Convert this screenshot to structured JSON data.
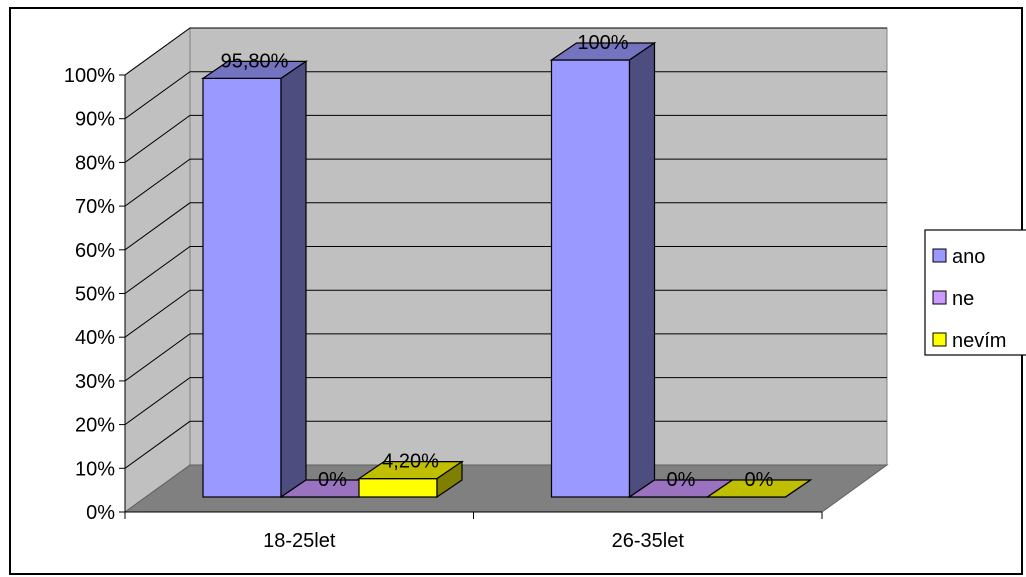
{
  "chart_data": {
    "type": "bar",
    "title": "",
    "xlabel": "",
    "ylabel": "",
    "ylim": [
      0,
      100
    ],
    "yticks": [
      "0%",
      "10%",
      "20%",
      "30%",
      "40%",
      "50%",
      "60%",
      "70%",
      "80%",
      "90%",
      "100%"
    ],
    "categories": [
      "18-25let",
      "26-35let"
    ],
    "series": [
      {
        "name": "ano",
        "values": [
          95.8,
          100
        ],
        "labels": [
          "95,80%",
          "100%"
        ],
        "color": "#9999ff"
      },
      {
        "name": "ne",
        "values": [
          0,
          0
        ],
        "labels": [
          "0%",
          "0%"
        ],
        "color": "#cc99ff"
      },
      {
        "name": "nevím",
        "values": [
          4.2,
          0
        ],
        "labels": [
          "4,20%",
          "0%"
        ],
        "color": "#ffff00"
      }
    ],
    "grid": true,
    "legend_position": "right",
    "style": "3d-clustered-column",
    "wall_color": "#c0c0c0",
    "floor_color": "#808080"
  }
}
